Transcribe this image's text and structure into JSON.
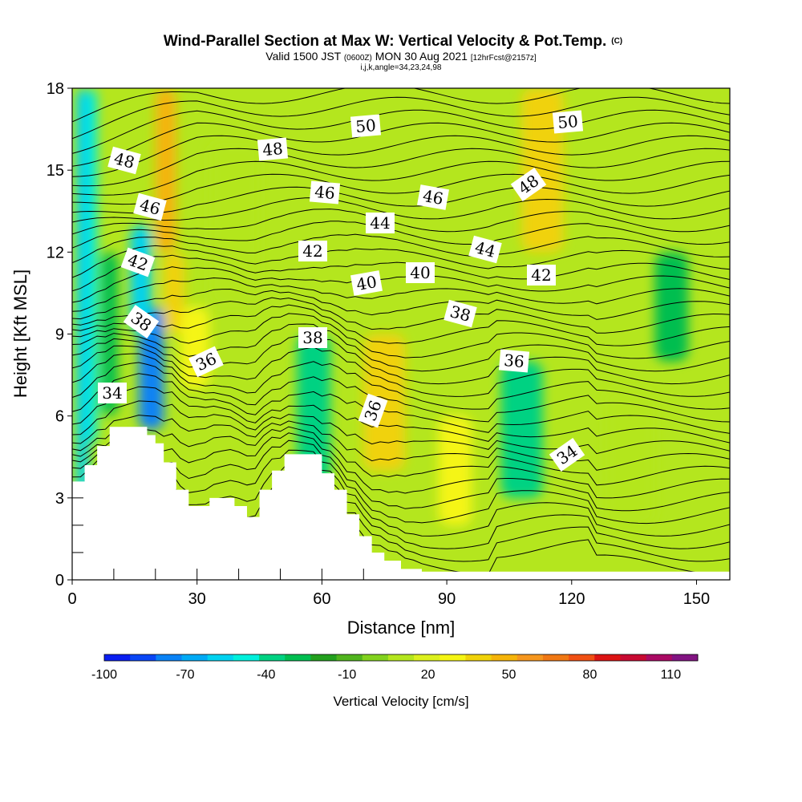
{
  "chart_data": {
    "type": "heatmap",
    "title": "Wind-Parallel Section at Max W: Vertical Velocity & Pot.Temp.",
    "title_mark": "(C)",
    "subtitle_parts": [
      "Valid 1500 JST",
      "(0600Z)",
      "MON 30 Aug 2021",
      "[12hrFcst@2157z]"
    ],
    "subtitle2": "i,j,k,angle=34,23,24,98",
    "xlabel": "Distance [nm]",
    "ylabel": "Height [Kft MSL]",
    "xlim": [
      0,
      158
    ],
    "ylim": [
      0,
      18
    ],
    "x_ticks": [
      0,
      30,
      60,
      90,
      120,
      150
    ],
    "x_tick_labels": [
      "0",
      "30",
      "60",
      "90",
      "120",
      "150"
    ],
    "y_ticks": [
      0,
      3,
      6,
      9,
      12,
      15,
      18
    ],
    "y_tick_labels": [
      "0",
      "3",
      "6",
      "9",
      "12",
      "15",
      "18"
    ],
    "colorbar": {
      "label": "Vertical Velocity [cm/s]",
      "min": -100,
      "max": 120,
      "step": 10,
      "tick_labels": [
        "-100",
        "-70",
        "-40",
        "-10",
        "20",
        "50",
        "80",
        "110"
      ],
      "colors": [
        "#0a1ef0",
        "#0a46f5",
        "#0a82f5",
        "#00aaf5",
        "#00d2f0",
        "#00f0dc",
        "#00d282",
        "#00be50",
        "#23a01e",
        "#50b41e",
        "#82d21e",
        "#b4e61e",
        "#dcf01e",
        "#f5f514",
        "#f0d20a",
        "#f5b40a",
        "#f5961e",
        "#f07814",
        "#f05014",
        "#dc1414",
        "#c80a32",
        "#aa0a64",
        "#821482"
      ]
    },
    "w_field": {
      "units": "cm/s",
      "description": "vertical velocity shading, estimated",
      "cells": [
        {
          "x": [
            1,
            4
          ],
          "y": [
            0,
            18
          ],
          "w": -60
        },
        {
          "x": [
            4,
            6
          ],
          "y": [
            5,
            18
          ],
          "w": -45
        },
        {
          "x": [
            7,
            11
          ],
          "y": [
            6,
            12
          ],
          "w": -30
        },
        {
          "x": [
            16,
            22
          ],
          "y": [
            5.5,
            10
          ],
          "w": -75
        },
        {
          "x": [
            14,
            19
          ],
          "y": [
            9,
            13
          ],
          "w": -55
        },
        {
          "x": [
            20,
            25
          ],
          "y": [
            12,
            18
          ],
          "w": 55
        },
        {
          "x": [
            22,
            27
          ],
          "y": [
            9,
            12
          ],
          "w": 45
        },
        {
          "x": [
            26,
            33
          ],
          "y": [
            7,
            10
          ],
          "w": 30
        },
        {
          "x": [
            33,
            45
          ],
          "y": [
            10,
            16
          ],
          "w": 15
        },
        {
          "x": [
            54,
            62
          ],
          "y": [
            3.5,
            9
          ],
          "w": -40
        },
        {
          "x": [
            70,
            80
          ],
          "y": [
            4,
            9
          ],
          "w": 40
        },
        {
          "x": [
            88,
            96
          ],
          "y": [
            2,
            6
          ],
          "w": 30
        },
        {
          "x": [
            103,
            113
          ],
          "y": [
            3,
            8
          ],
          "w": -35
        },
        {
          "x": [
            108,
            118
          ],
          "y": [
            12,
            18
          ],
          "w": 45
        },
        {
          "x": [
            128,
            140
          ],
          "y": [
            2,
            7
          ],
          "w": 15
        },
        {
          "x": [
            140,
            148
          ],
          "y": [
            8,
            12
          ],
          "w": -30
        }
      ]
    },
    "theta_contours": {
      "units": "C",
      "label_values": [
        "48",
        "46",
        "42",
        "38",
        "34",
        "36",
        "50",
        "48",
        "46",
        "44",
        "42",
        "38",
        "40",
        "40",
        "36",
        "50",
        "48",
        "46",
        "44",
        "42",
        "38",
        "36",
        "34"
      ]
    },
    "terrain_kft": [
      [
        0,
        3.6
      ],
      [
        3,
        4.2
      ],
      [
        6,
        4.9
      ],
      [
        9,
        5.6
      ],
      [
        18,
        5.3
      ],
      [
        20,
        5
      ],
      [
        22,
        4.3
      ],
      [
        25,
        3.3
      ],
      [
        28,
        2.7
      ],
      [
        33,
        3
      ],
      [
        39,
        2.7
      ],
      [
        42,
        2.3
      ],
      [
        45,
        3.3
      ],
      [
        48,
        4
      ],
      [
        51,
        4.6
      ],
      [
        60,
        3.9
      ],
      [
        63,
        3.3
      ],
      [
        66,
        2.4
      ],
      [
        69,
        1.6
      ],
      [
        72,
        1
      ],
      [
        75,
        0.7
      ],
      [
        79,
        0.4
      ],
      [
        84,
        0.3
      ],
      [
        158,
        0.3
      ]
    ]
  }
}
